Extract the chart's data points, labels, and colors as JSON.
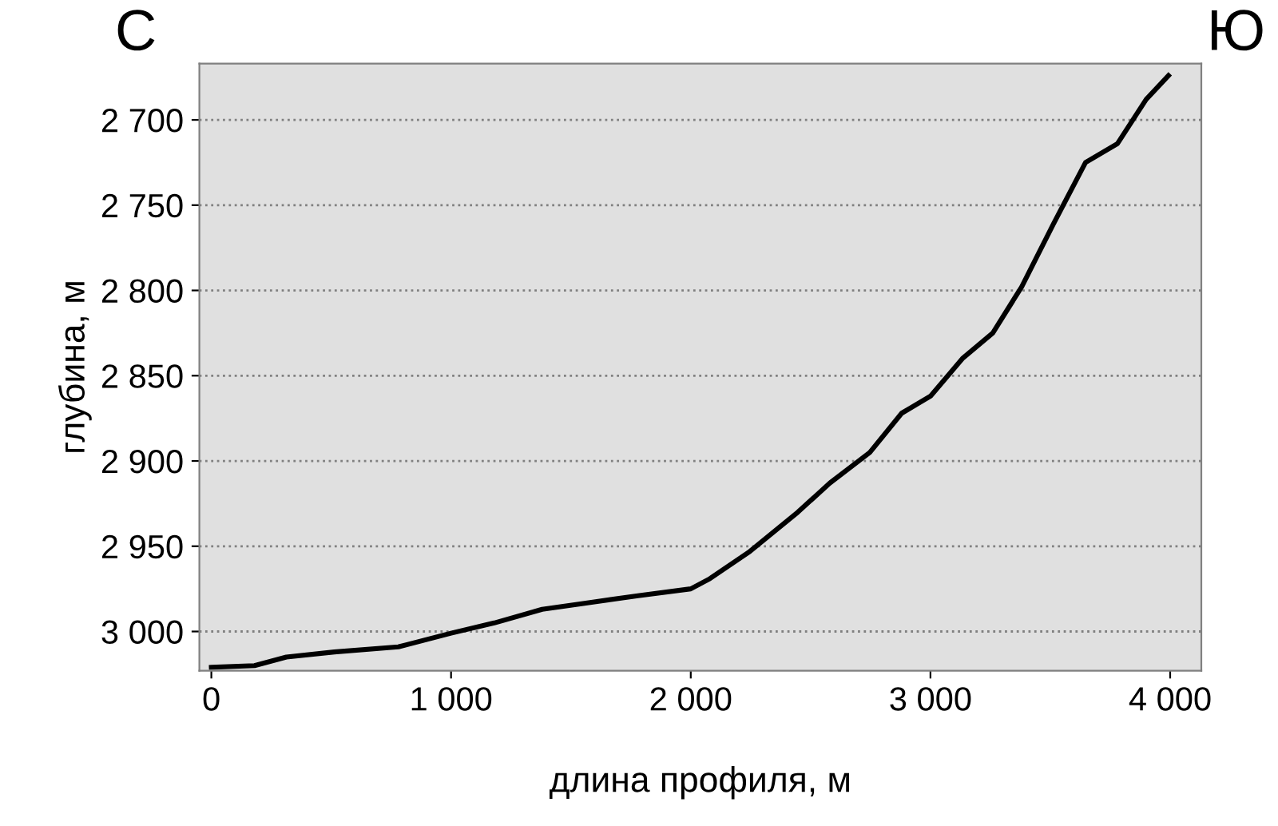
{
  "chart_data": {
    "type": "line",
    "xlabel": "длина профиля, м",
    "ylabel": "глубина, м",
    "annotations": [
      "С",
      "Ю"
    ],
    "x": [
      0,
      180,
      313,
      513,
      780,
      1000,
      1180,
      1380,
      1580,
      1780,
      2000,
      2080,
      2247,
      2447,
      2580,
      2747,
      2880,
      3000,
      3133,
      3260,
      3380,
      3513,
      3647,
      3780,
      3900,
      3993
    ],
    "series": [
      {
        "color": "#000000",
        "values": [
          3021,
          3020,
          3015,
          3012,
          3009,
          3001,
          2995,
          2987,
          2983,
          2979,
          2975,
          2969,
          2953,
          2930,
          2913,
          2895,
          2872,
          2862,
          2840,
          2825,
          2798,
          2761,
          2725,
          2714,
          2688,
          2674
        ]
      }
    ],
    "xlim": [
      -50,
      4130
    ],
    "ylim": [
      3023,
      2667
    ],
    "xticks": [
      0,
      {
        "value": 1000,
        "label": "1 000"
      },
      {
        "value": 2000,
        "label": "2 000"
      },
      {
        "value": 3000,
        "label": "3 000"
      },
      {
        "value": 4000,
        "label": "4 000"
      }
    ],
    "yticks": [
      {
        "value": 2700,
        "label": "2 700"
      },
      {
        "value": 2750,
        "label": "2 750"
      },
      {
        "value": 2800,
        "label": "2 800"
      },
      {
        "value": 2850,
        "label": "2 850"
      },
      {
        "value": 2900,
        "label": "2 900"
      },
      {
        "value": 2950,
        "label": "2 950"
      },
      {
        "value": 3000,
        "label": "3 000"
      }
    ],
    "grid": "y",
    "marker": "none",
    "line_style": "solid"
  }
}
